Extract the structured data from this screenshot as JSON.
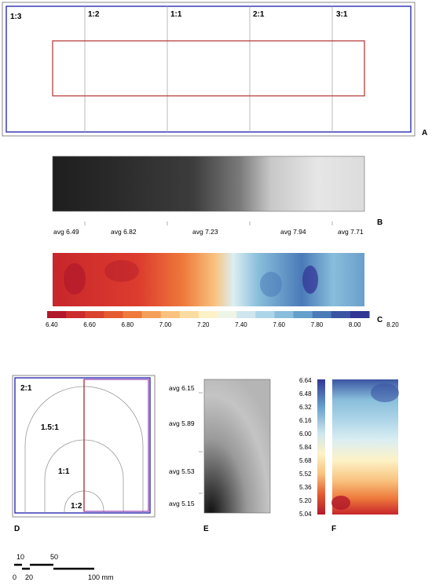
{
  "panel_a": {
    "ratios": [
      "1:3",
      "1:2",
      "1:1",
      "2:1",
      "3:1"
    ],
    "letter": "A"
  },
  "panel_b": {
    "letter": "B",
    "averages": [
      "avg 6.49",
      "avg 6.82",
      "avg 7.23",
      "avg 7.94",
      "avg 7.71"
    ]
  },
  "panel_c": {
    "letter": "C",
    "scale_labels": [
      "6.40",
      "6.60",
      "6.80",
      "7.00",
      "7.20",
      "7.40",
      "7.60",
      "7.80",
      "8.00",
      "8.20"
    ],
    "scale_colors": [
      "#b2182b",
      "#cc2c2c",
      "#d9432e",
      "#e45b31",
      "#ee7a3c",
      "#f5a05a",
      "#f9c27e",
      "#fbdca0",
      "#fdf2c6",
      "#eef5e6",
      "#cfe6ee",
      "#add5e8",
      "#88bedb",
      "#659fcb",
      "#4b7ab8",
      "#3b55a3",
      "#313695"
    ]
  },
  "panel_d": {
    "letter": "D",
    "ratios": [
      "2:1",
      "1.5:1",
      "1:1",
      "1:2"
    ]
  },
  "panel_e": {
    "letter": "E",
    "averages": [
      "avg 6.15",
      "avg 5.89",
      "avg 5.53",
      "avg 5.15"
    ]
  },
  "panel_f": {
    "letter": "F",
    "scale_labels": [
      "6.64",
      "6.48",
      "6.32",
      "6.16",
      "6.00",
      "5.84",
      "5.68",
      "5.52",
      "5.36",
      "5.20",
      "5.04"
    ]
  },
  "scalebar": {
    "labels": [
      "10",
      "50",
      "0",
      "20",
      "100 mm"
    ]
  }
}
